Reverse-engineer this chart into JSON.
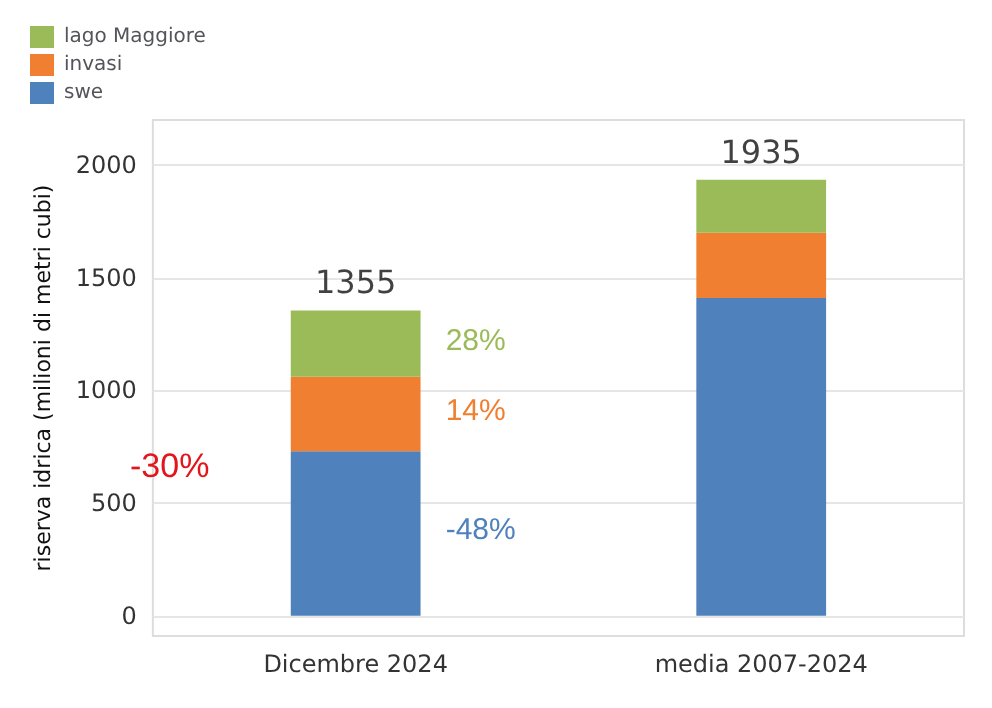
{
  "chart_data": {
    "type": "bar",
    "stacked": true,
    "ylabel": "riserva idrica (milioni di metri cubi)",
    "categories": [
      "Dicembre 2024",
      "media 2007-2024"
    ],
    "series": [
      {
        "name": "swe",
        "color": "#4f81bd",
        "values": [
          730,
          1410
        ]
      },
      {
        "name": "invasi",
        "color": "#f07f31",
        "values": [
          330,
          290
        ]
      },
      {
        "name": "lago Maggiore",
        "color": "#9bbb59",
        "values": [
          295,
          235
        ]
      }
    ],
    "totals": [
      "1355",
      "1935"
    ],
    "ylim": [
      -90,
      2200
    ],
    "yticks": [
      0,
      500,
      1000,
      1500,
      2000
    ],
    "grid": "y",
    "legend": "top left",
    "annotations": [
      "-30%",
      "28%",
      "14%",
      "-48%"
    ]
  }
}
